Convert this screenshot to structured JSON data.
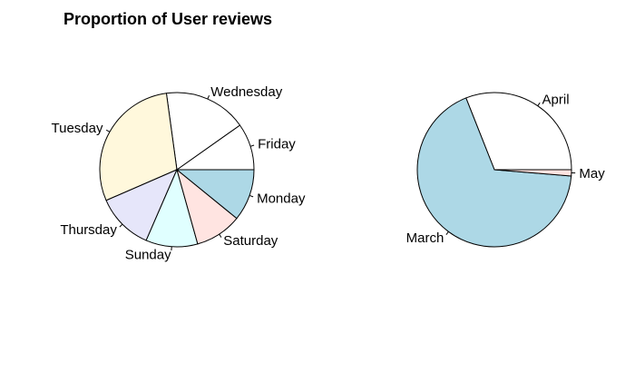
{
  "chart_data": [
    {
      "type": "pie",
      "title": "Proportion of User reviews",
      "slices": [
        {
          "label": "Friday",
          "value": 0.09,
          "color": "#ffffff"
        },
        {
          "label": "Wednesday",
          "value": 0.16,
          "color": "#ffffff"
        },
        {
          "label": "Tuesday",
          "value": 0.27,
          "color": "#fff8dc"
        },
        {
          "label": "Thursday",
          "value": 0.11,
          "color": "#e6e6fa"
        },
        {
          "label": "Sunday",
          "value": 0.1,
          "color": "#e0ffff"
        },
        {
          "label": "Saturday",
          "value": 0.09,
          "color": "#ffe4e1"
        },
        {
          "label": "Monday",
          "value": 0.1,
          "color": "#add8e6"
        }
      ]
    },
    {
      "type": "pie",
      "title": "",
      "slices": [
        {
          "label": "April",
          "value": 0.31,
          "color": "#ffffff"
        },
        {
          "label": "March",
          "value": 0.677,
          "color": "#add8e6"
        },
        {
          "label": "May",
          "value": 0.013,
          "color": "#ffe4e1"
        }
      ]
    }
  ]
}
